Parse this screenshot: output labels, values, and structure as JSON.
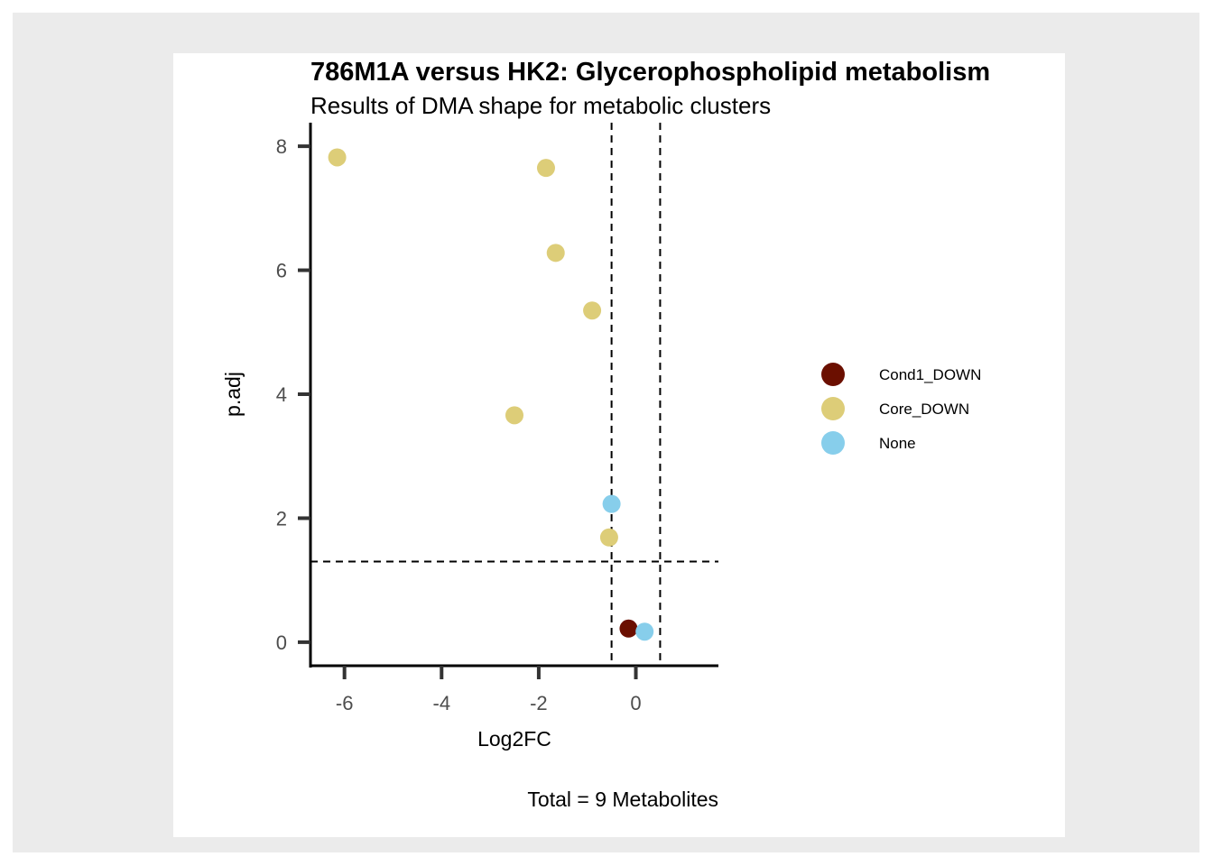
{
  "chart_data": {
    "type": "scatter",
    "title": "786M1A versus HK2: Glycerophospholipid metabolism",
    "subtitle": "Results of DMA shape for metabolic clusters",
    "xlabel": "Log2FC",
    "ylabel": "p.adj",
    "caption": "Total = 9 Metabolites",
    "xlim": [
      -6.7,
      1.7
    ],
    "ylim": [
      -0.38,
      8.38
    ],
    "x_ticks": [
      -6,
      -4,
      -2,
      0
    ],
    "y_ticks": [
      0,
      2,
      4,
      6,
      8
    ],
    "thresholds": {
      "x": [
        -0.5,
        0.5
      ],
      "y": 1.3
    },
    "legend_position": "right",
    "series": [
      {
        "name": "Cond1_DOWN",
        "color": "#6b0f00",
        "points": [
          {
            "x": -0.15,
            "y": 0.22
          }
        ]
      },
      {
        "name": "Core_DOWN",
        "color": "#ddcd78",
        "points": [
          {
            "x": -6.15,
            "y": 7.82
          },
          {
            "x": -1.85,
            "y": 7.65
          },
          {
            "x": -1.65,
            "y": 6.28
          },
          {
            "x": -0.9,
            "y": 5.35
          },
          {
            "x": -2.5,
            "y": 3.66
          },
          {
            "x": -0.55,
            "y": 1.69
          }
        ]
      },
      {
        "name": "None",
        "color": "#87ceeb",
        "points": [
          {
            "x": -0.5,
            "y": 2.23
          },
          {
            "x": 0.18,
            "y": 0.17
          }
        ]
      }
    ]
  }
}
